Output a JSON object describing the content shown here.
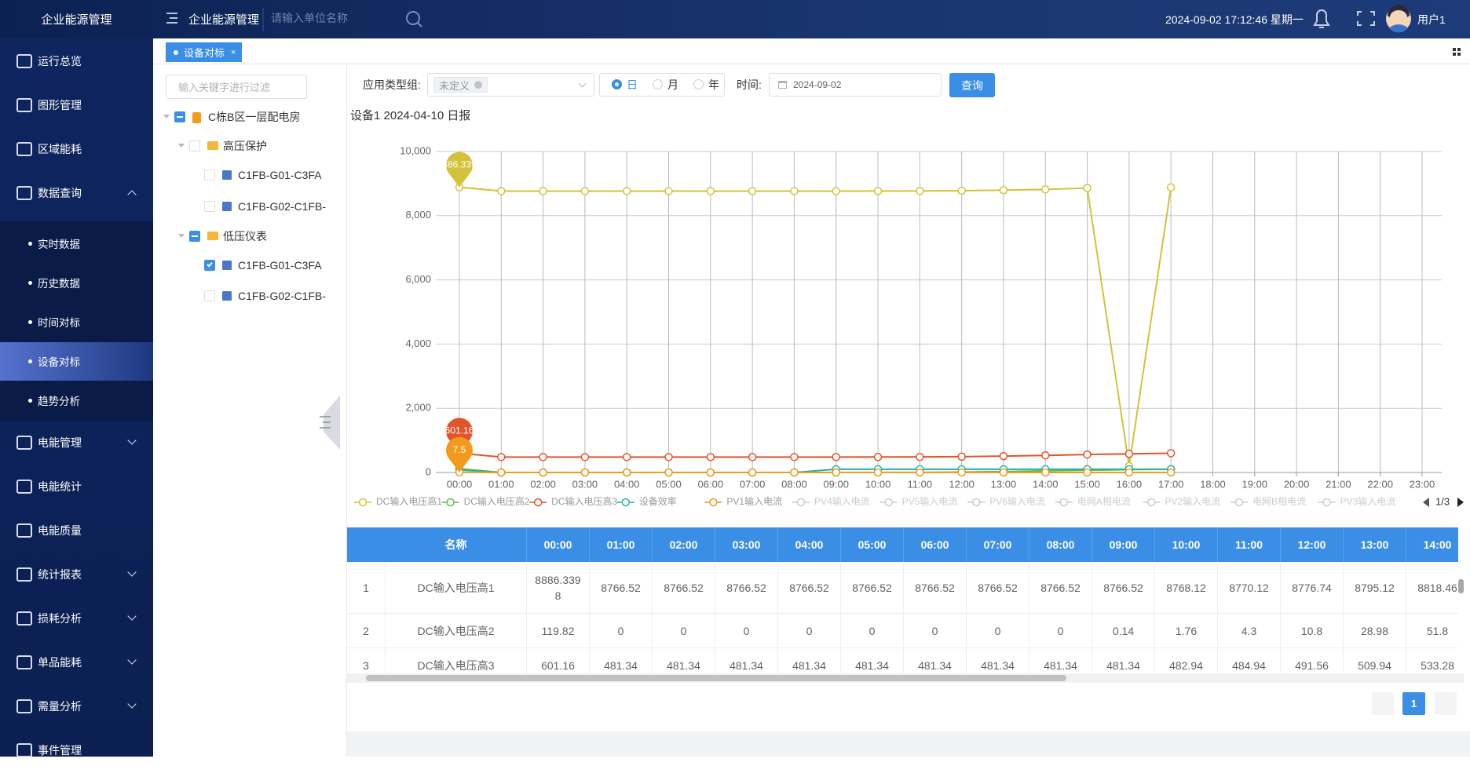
{
  "header": {
    "logo": "企业能源管理",
    "title": "企业能源管理",
    "search_placeholder": "请输入单位名称",
    "datetime": "2024-09-02 17:12:46 星期一",
    "user": "用户1"
  },
  "sidebar": {
    "items": [
      {
        "label": "运行总览"
      },
      {
        "label": "图形管理"
      },
      {
        "label": "区域能耗"
      },
      {
        "label": "数据查询",
        "arrow": "up",
        "children": [
          "实时数据",
          "历史数据",
          "时间对标",
          "设备对标",
          "趋势分析"
        ],
        "active_child": 3
      },
      {
        "label": "电能管理",
        "arrow": "down"
      },
      {
        "label": "电能统计"
      },
      {
        "label": "电能质量"
      },
      {
        "label": "统计报表",
        "arrow": "down"
      },
      {
        "label": "损耗分析",
        "arrow": "down"
      },
      {
        "label": "单品能耗",
        "arrow": "down"
      },
      {
        "label": "需量分析",
        "arrow": "down"
      },
      {
        "label": "事件管理"
      }
    ]
  },
  "tabs": [
    {
      "label": "设备对标"
    }
  ],
  "tree": {
    "filter_placeholder": "输入关键字进行过滤",
    "nodes": [
      {
        "label": "C栋B区一层配电房",
        "level": 0,
        "check": "partial"
      },
      {
        "label": "高压保护",
        "level": 1,
        "check": "none"
      },
      {
        "label": "C1FB-G01-C3FA",
        "level": 2,
        "check": "none"
      },
      {
        "label": "C1FB-G02-C1FB-",
        "level": 2,
        "check": "none"
      },
      {
        "label": "低压仪表",
        "level": 1,
        "check": "partial"
      },
      {
        "label": "C1FB-G01-C3FA",
        "level": 2,
        "check": "checked"
      },
      {
        "label": "C1FB-G02-C1FB-",
        "level": 2,
        "check": "none"
      }
    ]
  },
  "filters": {
    "type_label": "应用类型组:",
    "type_value": "未定义",
    "periods": [
      "日",
      "月",
      "年"
    ],
    "period_selected": 0,
    "time_label": "时间:",
    "date": "2024-09-02",
    "button": "查询"
  },
  "chart_data": {
    "type": "line",
    "title": "设备1 2024-04-10 日报",
    "categories": [
      "00:00",
      "01:00",
      "02:00",
      "03:00",
      "04:00",
      "05:00",
      "06:00",
      "07:00",
      "08:00",
      "09:00",
      "10:00",
      "11:00",
      "12:00",
      "13:00",
      "14:00",
      "15:00",
      "16:00",
      "17:00",
      "18:00",
      "19:00",
      "20:00",
      "21:00",
      "22:00",
      "23:00"
    ],
    "ylim": [
      0,
      10000
    ],
    "yticks": [
      0,
      {
        "value": 2000,
        "label": "2,000"
      },
      {
        "value": 4000,
        "label": "4,000"
      },
      {
        "value": 6000,
        "label": "6,000"
      },
      {
        "value": 8000,
        "label": "8,000"
      },
      {
        "value": 10000,
        "label": "10,000"
      }
    ],
    "grid": true,
    "series": [
      {
        "name": "DC输入电压高1",
        "color": "#d4c23a",
        "mark_point": "max",
        "values": [
          8886.3398,
          8766.52,
          8766.52,
          8766.52,
          8766.52,
          8766.52,
          8766.52,
          8766.52,
          8766.52,
          8766.52,
          8768.12,
          8770.12,
          8776.74,
          8795.12,
          8818.46,
          8860,
          200,
          8880,
          null,
          null,
          null,
          null,
          null,
          null
        ]
      },
      {
        "name": "DC输入电压高2",
        "color": "#5cbf4e",
        "values": [
          119.82,
          0,
          0,
          0,
          0,
          0,
          0,
          0,
          0,
          0.14,
          1.76,
          4.3,
          10.8,
          28.98,
          51.8,
          70,
          90,
          100,
          null,
          null,
          null,
          null,
          null,
          null
        ]
      },
      {
        "name": "DC输入电压高3",
        "color": "#e2542a",
        "mark_point": "max",
        "values": [
          601.16,
          481.34,
          481.34,
          481.34,
          481.34,
          481.34,
          481.34,
          481.34,
          481.34,
          481.34,
          482.94,
          484.94,
          491.56,
          509.94,
          533.28,
          560,
          580,
          600,
          null,
          null,
          null,
          null,
          null,
          null
        ]
      },
      {
        "name": "设备效率",
        "color": "#27b1a8",
        "values": [
          80,
          0,
          0,
          0,
          0,
          0,
          0,
          0,
          0,
          100,
          100,
          100,
          100,
          100,
          100,
          100,
          100,
          100,
          null,
          null,
          null,
          null,
          null,
          null
        ]
      },
      {
        "name": "PV1输入电流",
        "color": "#f29a1c",
        "mark_point": "max",
        "values": [
          7.5,
          0,
          0,
          0,
          0,
          0,
          0,
          0,
          0,
          0,
          0,
          0,
          0,
          0,
          0,
          0,
          0,
          0,
          null,
          null,
          null,
          null,
          null,
          null
        ]
      }
    ],
    "legend_inactive": [
      "PV4输入电流",
      "PV5输入电流",
      "PV6输入电流",
      "电网A相电流",
      "PV2输入电流",
      "电网B相电流",
      "PV3输入电流"
    ],
    "legend_page": "1/3"
  },
  "table": {
    "columns": [
      "名称",
      "00:00",
      "01:00",
      "02:00",
      "03:00",
      "04:00",
      "05:00",
      "06:00",
      "07:00",
      "08:00",
      "09:00",
      "10:00",
      "11:00",
      "12:00",
      "13:00",
      "14:00"
    ],
    "rows": [
      [
        "1",
        "DC输入电压高1",
        "8886.3398",
        "8766.52",
        "8766.52",
        "8766.52",
        "8766.52",
        "8766.52",
        "8766.52",
        "8766.52",
        "8766.52",
        "8766.52",
        "8768.12",
        "8770.12",
        "8776.74",
        "8795.12",
        "8818.46"
      ],
      [
        "2",
        "DC输入电压高2",
        "119.82",
        "0",
        "0",
        "0",
        "0",
        "0",
        "0",
        "0",
        "0",
        "0.14",
        "1.76",
        "4.3",
        "10.8",
        "28.98",
        "51.8"
      ],
      [
        "3",
        "DC输入电压高3",
        "601.16",
        "481.34",
        "481.34",
        "481.34",
        "481.34",
        "481.34",
        "481.34",
        "481.34",
        "481.34",
        "481.34",
        "482.94",
        "484.94",
        "491.56",
        "509.94",
        "533.28"
      ]
    ]
  },
  "pagination": {
    "current": "1"
  }
}
